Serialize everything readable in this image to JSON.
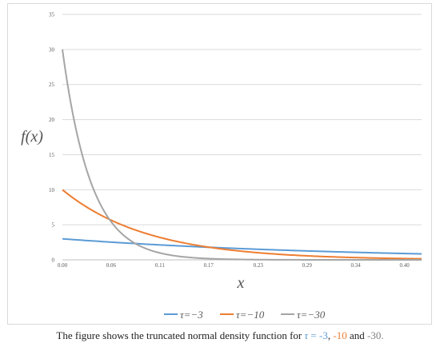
{
  "chart_data": {
    "type": "line",
    "ylabel": "f(x)",
    "xlabel": "x",
    "xlim": [
      0.0,
      0.42
    ],
    "ylim": [
      0,
      35
    ],
    "x_ticks": [
      "0.00",
      "0.06",
      "0.11",
      "0.17",
      "0.23",
      "0.29",
      "0.34",
      "0.40"
    ],
    "x_tick_values": [
      0.0,
      0.057,
      0.114,
      0.171,
      0.229,
      0.286,
      0.343,
      0.4
    ],
    "y_ticks": [
      "0",
      "5",
      "10",
      "15",
      "20",
      "25",
      "30",
      "35"
    ],
    "y_tick_values": [
      0,
      5,
      10,
      15,
      20,
      25,
      30,
      35
    ],
    "grid": true,
    "legend_position": "bottom",
    "series": [
      {
        "name": "τ=−3",
        "tau": -3,
        "color": "#5b9bd5"
      },
      {
        "name": "τ=−10",
        "tau": -10,
        "color": "#ed7d31"
      },
      {
        "name": "τ=−30",
        "tau": -30,
        "color": "#a5a5a5"
      }
    ]
  },
  "caption": {
    "prefix": "The figure shows the truncated normal density function for ",
    "tau_symbol": "τ",
    "equals": " = ",
    "v1": "-3",
    "sep1": ", ",
    "v2": "-10",
    "sep2": " and ",
    "v3": "-30."
  }
}
